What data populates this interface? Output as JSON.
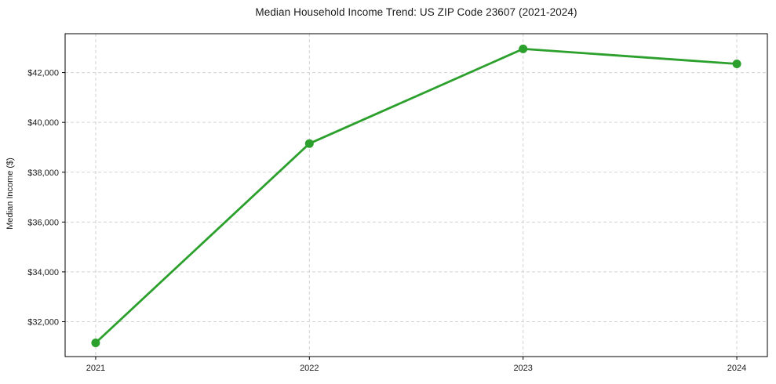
{
  "chart_data": {
    "type": "line",
    "title": "Median Household Income Trend: US ZIP Code 23607 (2021-2024)",
    "xlabel": "",
    "ylabel": "Median Income ($)",
    "x": [
      2021,
      2022,
      2023,
      2024
    ],
    "x_tick_labels": [
      "2021",
      "2022",
      "2023",
      "2024"
    ],
    "series": [
      {
        "name": "Median Household Income",
        "values": [
          31150,
          39150,
          42950,
          42350
        ]
      }
    ],
    "y_ticks": [
      32000,
      34000,
      36000,
      38000,
      40000,
      42000
    ],
    "y_tick_labels": [
      "$32,000",
      "$34,000",
      "$36,000",
      "$38,000",
      "$40,000",
      "$42,000"
    ],
    "xlim": [
      2020.857,
      2024.143
    ],
    "ylim": [
      30600,
      43560
    ],
    "grid": true,
    "grid_style": "dashed",
    "legend": false,
    "line_color": "#2ca02c",
    "marker": "circle",
    "background_color": "#ffffff",
    "grid_color": "#d2d2d2",
    "text_color": "#1a1a1a"
  }
}
